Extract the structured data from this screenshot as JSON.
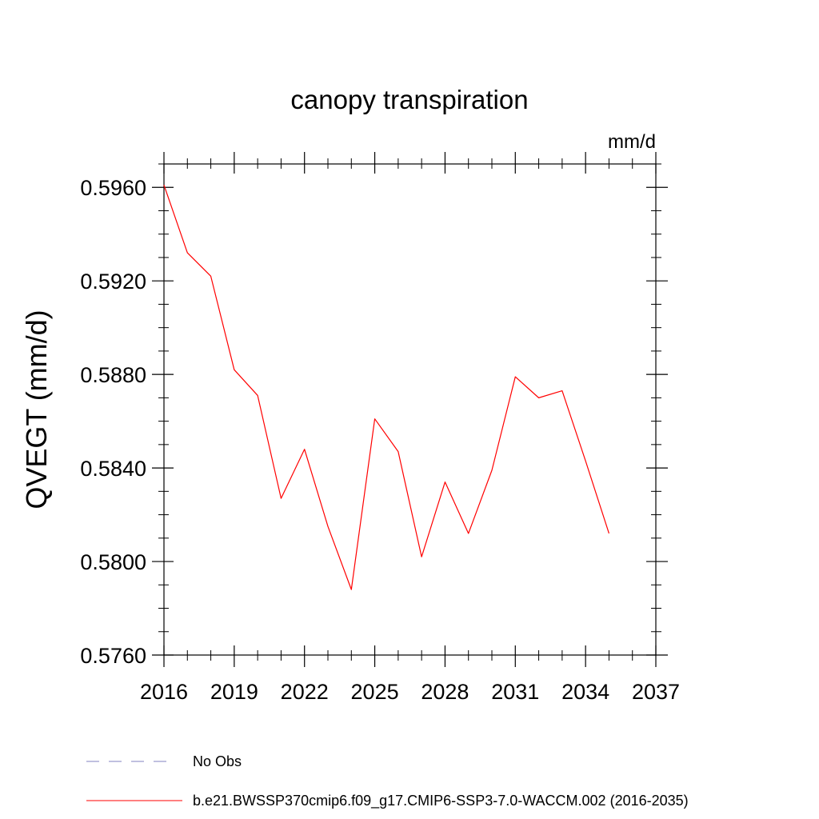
{
  "chart_data": {
    "type": "line",
    "title": "canopy transpiration",
    "units": "mm/d",
    "ylabel": "QVEGT  (mm/d)",
    "xlabel": "",
    "xlim": [
      2016,
      2037
    ],
    "ylim": [
      0.576,
      0.597
    ],
    "x_major_ticks": [
      2016,
      2019,
      2022,
      2025,
      2028,
      2031,
      2034,
      2037
    ],
    "x_tick_labels": [
      "2016",
      "2019",
      "2022",
      "2025",
      "2028",
      "2031",
      "2034",
      "2037"
    ],
    "y_major_ticks": [
      0.576,
      0.58,
      0.584,
      0.588,
      0.592,
      0.596
    ],
    "y_tick_labels": [
      "0.5760",
      "0.5800",
      "0.5840",
      "0.5880",
      "0.5920",
      "0.5960"
    ],
    "grid": false,
    "legend_position": "bottom",
    "series": [
      {
        "name": "No Obs",
        "color": "#8080c0",
        "dash": "dashed",
        "x": [],
        "values": []
      },
      {
        "name": "b.e21.BWSSP370cmip6.f09_g17.CMIP6-SSP3-7.0-WACCM.002 (2016-2035)",
        "color": "#ff0000",
        "dash": "solid",
        "x": [
          2016,
          2017,
          2018,
          2019,
          2020,
          2021,
          2022,
          2023,
          2024,
          2025,
          2026,
          2027,
          2028,
          2029,
          2030,
          2031,
          2032,
          2033,
          2034,
          2035
        ],
        "values": [
          0.5961,
          0.5932,
          0.5922,
          0.5882,
          0.5871,
          0.5827,
          0.5848,
          0.5815,
          0.5788,
          0.5861,
          0.5847,
          0.5802,
          0.5834,
          0.5812,
          0.5839,
          0.5879,
          0.587,
          0.5873,
          0.5843,
          0.5812
        ]
      }
    ]
  }
}
